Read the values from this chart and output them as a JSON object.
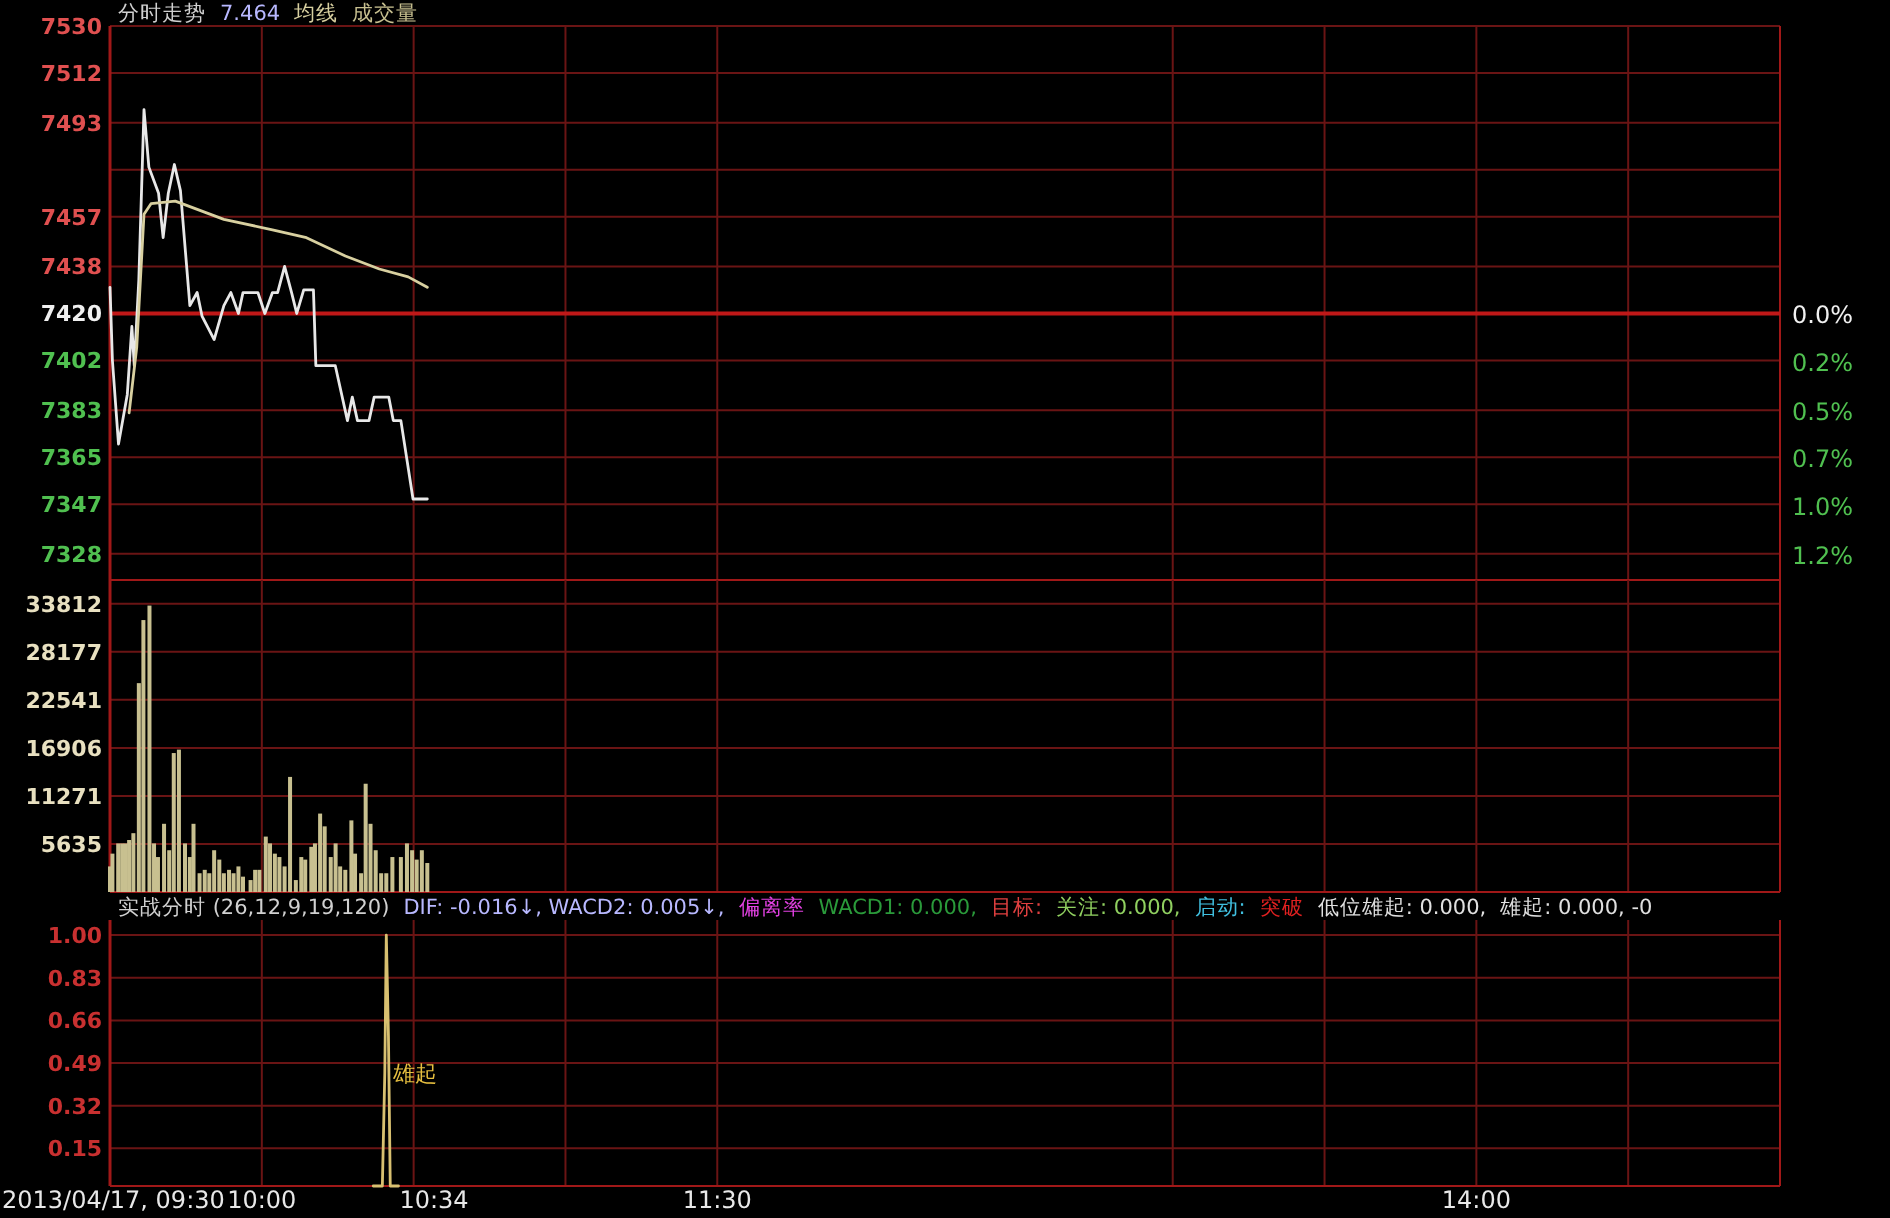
{
  "chart_data": [
    {
      "type": "line",
      "title": "分时走势",
      "xlim": [
        9.5,
        15
      ],
      "xticks": [
        {
          "value": 9.5,
          "label": null
        },
        {
          "value": 10,
          "label": null
        },
        {
          "value": 10.5,
          "label": null
        },
        {
          "value": 11,
          "label": null
        },
        {
          "value": 11.5,
          "label": null
        },
        {
          "value": 13,
          "label": null
        },
        {
          "value": 13.5,
          "label": null
        },
        {
          "value": 14,
          "label": null
        },
        {
          "value": 14.5,
          "label": null
        },
        {
          "value": 15,
          "label": null
        }
      ],
      "ylim": [
        7318,
        7530
      ],
      "yticks": [
        7328,
        7347,
        7365,
        7383,
        7402,
        7420,
        7438,
        7457,
        {
          "value": 7475,
          "label": null
        },
        7493,
        7512,
        7530
      ],
      "y2lim": [
        1.37,
        -1.48
      ],
      "y2ticks": [
        {
          "value": 0,
          "label": "0.0%"
        },
        {
          "value": 0.25,
          "label": "0.2%"
        },
        {
          "value": 0.5,
          "label": "0.5%"
        },
        {
          "value": 0.74,
          "label": "0.7%"
        },
        {
          "value": 0.99,
          "label": "1.0%"
        },
        {
          "value": 1.24,
          "label": "1.2%"
        }
      ],
      "grid": true,
      "tick_labels": "y",
      "legend": "top left",
      "ref_lines": [
        {
          "axis": "y",
          "value": 7420,
          "color": "#c01818"
        }
      ],
      "annotations": [
        "7.464"
      ],
      "series": [
        {
          "color": "#e8e8e8",
          "x": [
            9.5,
            9.508,
            9.528,
            9.557,
            9.572,
            9.58,
            9.595,
            9.612,
            9.628,
            9.66,
            9.675,
            9.692,
            9.712,
            9.732,
            9.763,
            9.787,
            9.803,
            9.843,
            9.875,
            9.898,
            9.923,
            9.938,
            9.987,
            10.01,
            10.035,
            10.052,
            10.075,
            10.098,
            10.115,
            10.138,
            10.17,
            10.178,
            10.242,
            10.282,
            10.298,
            10.315,
            10.353,
            10.37,
            10.418,
            10.433,
            10.458,
            10.498,
            10.545
          ],
          "values": [
            7430,
            7402,
            7370,
            7389,
            7415,
            7400,
            7433,
            7498,
            7476,
            7466,
            7449,
            7466,
            7477,
            7467,
            7423,
            7428,
            7419,
            7410,
            7423,
            7428,
            7420,
            7428,
            7428,
            7420,
            7428,
            7428,
            7438,
            7428,
            7420,
            7429,
            7429,
            7400,
            7400,
            7379,
            7388,
            7379,
            7379,
            7388,
            7388,
            7379,
            7379,
            7349,
            7349
          ]
        },
        {
          "name": "均线",
          "color": "#d8d0a0",
          "x": [
            9.563,
            9.588,
            9.612,
            9.635,
            9.715,
            9.875,
            10.035,
            10.147,
            10.275,
            10.387,
            10.482,
            10.545
          ],
          "values": [
            7382,
            7407,
            7458,
            7462,
            7463,
            7456,
            7452,
            7449,
            7442,
            7437,
            7434,
            7430
          ]
        }
      ]
    },
    {
      "type": "bar",
      "xlim": [
        9.5,
        15
      ],
      "xticks": [
        {
          "value": 9.5,
          "label": null
        },
        {
          "value": 10,
          "label": null
        },
        {
          "value": 10.5,
          "label": null
        },
        {
          "value": 11,
          "label": null
        },
        {
          "value": 11.5,
          "label": null
        },
        {
          "value": 13,
          "label": null
        },
        {
          "value": 13.5,
          "label": null
        },
        {
          "value": 14,
          "label": null
        },
        {
          "value": 14.5,
          "label": null
        },
        {
          "value": 15,
          "label": null
        }
      ],
      "ylim": [
        0,
        36600
      ],
      "yticks": [
        5635,
        11271,
        16906,
        22541,
        28177,
        33812
      ],
      "grid": true,
      "tick_labels": "y",
      "legend": "top left",
      "series": [
        {
          "name": "成交量",
          "color": "#c8c090",
          "x": [
            9.5,
            9.508,
            9.527,
            9.54,
            9.552,
            9.563,
            9.577,
            9.595,
            9.61,
            9.63,
            9.645,
            9.658,
            9.678,
            9.695,
            9.71,
            9.727,
            9.747,
            9.763,
            9.775,
            9.795,
            9.812,
            9.827,
            9.843,
            9.86,
            9.875,
            9.892,
            9.907,
            9.923,
            9.938,
            9.963,
            9.978,
            9.992,
            10.013,
            10.027,
            10.043,
            10.058,
            10.075,
            10.093,
            10.112,
            10.13,
            10.143,
            10.163,
            10.175,
            10.192,
            10.207,
            10.227,
            10.243,
            10.258,
            10.275,
            10.295,
            10.307,
            10.327,
            10.342,
            10.358,
            10.375,
            10.393,
            10.41,
            10.43,
            10.458,
            10.478,
            10.495,
            10.51,
            10.527,
            10.545
          ],
          "values": [
            3000,
            4500,
            5700,
            5700,
            5700,
            6100,
            6900,
            24500,
            31900,
            33600,
            5700,
            4100,
            8000,
            4900,
            16300,
            16700,
            5700,
            4100,
            8000,
            2200,
            2600,
            2200,
            4900,
            3800,
            2200,
            2600,
            2200,
            3000,
            1800,
            1400,
            2600,
            2600,
            6500,
            5700,
            4500,
            4100,
            3000,
            13500,
            1400,
            4100,
            3800,
            5300,
            5700,
            9200,
            7700,
            4100,
            5700,
            3000,
            2600,
            8400,
            4500,
            2200,
            12700,
            8000,
            4900,
            2200,
            2200,
            4100,
            4100,
            5700,
            4900,
            3800,
            4900,
            3400
          ]
        }
      ]
    },
    {
      "type": "line",
      "title": "实战分时 (26,12,9,19,120)",
      "xlim": [
        9.5,
        15
      ],
      "xticks": [
        {
          "value": 9.5,
          "label": "2013/04/17, 09:30"
        },
        {
          "value": 10,
          "label": "10:00"
        },
        {
          "value": 10.5,
          "label": null
        },
        {
          "value": 10.567,
          "label": "10:34"
        },
        {
          "value": 11,
          "label": null
        },
        {
          "value": 11.5,
          "label": "11:30"
        },
        {
          "value": 13,
          "label": null
        },
        {
          "value": 13.5,
          "label": null
        },
        {
          "value": 14,
          "label": "14:00"
        },
        {
          "value": 14.5,
          "label": null
        },
        {
          "value": 15,
          "label": null
        }
      ],
      "ylim": [
        0,
        1.06
      ],
      "yticks": [
        0.15,
        0.32,
        0.49,
        0.66,
        0.83,
        {
          "value": 1,
          "label": "1.00"
        }
      ],
      "grid": true,
      "annotations": [
        "DIF: -0.016↓, WACD2: 0.005↓,",
        "偏离率",
        "WACD1: 0.000,",
        "目标:",
        "关注: 0.000,",
        "启动:",
        "突破",
        "低位雄起: 0.000,",
        "雄起: 0.000, -0",
        {
          "text": "雄起",
          "x": 10.433,
          "y": 0.45
        }
      ],
      "series": [
        {
          "color": "#d8c070",
          "x": [
            10.367,
            10.397,
            10.405,
            10.41,
            10.417,
            10.423,
            10.45
          ],
          "values": [
            0,
            0,
            0.45,
            1,
            0.6,
            0,
            0
          ]
        }
      ]
    }
  ]
}
